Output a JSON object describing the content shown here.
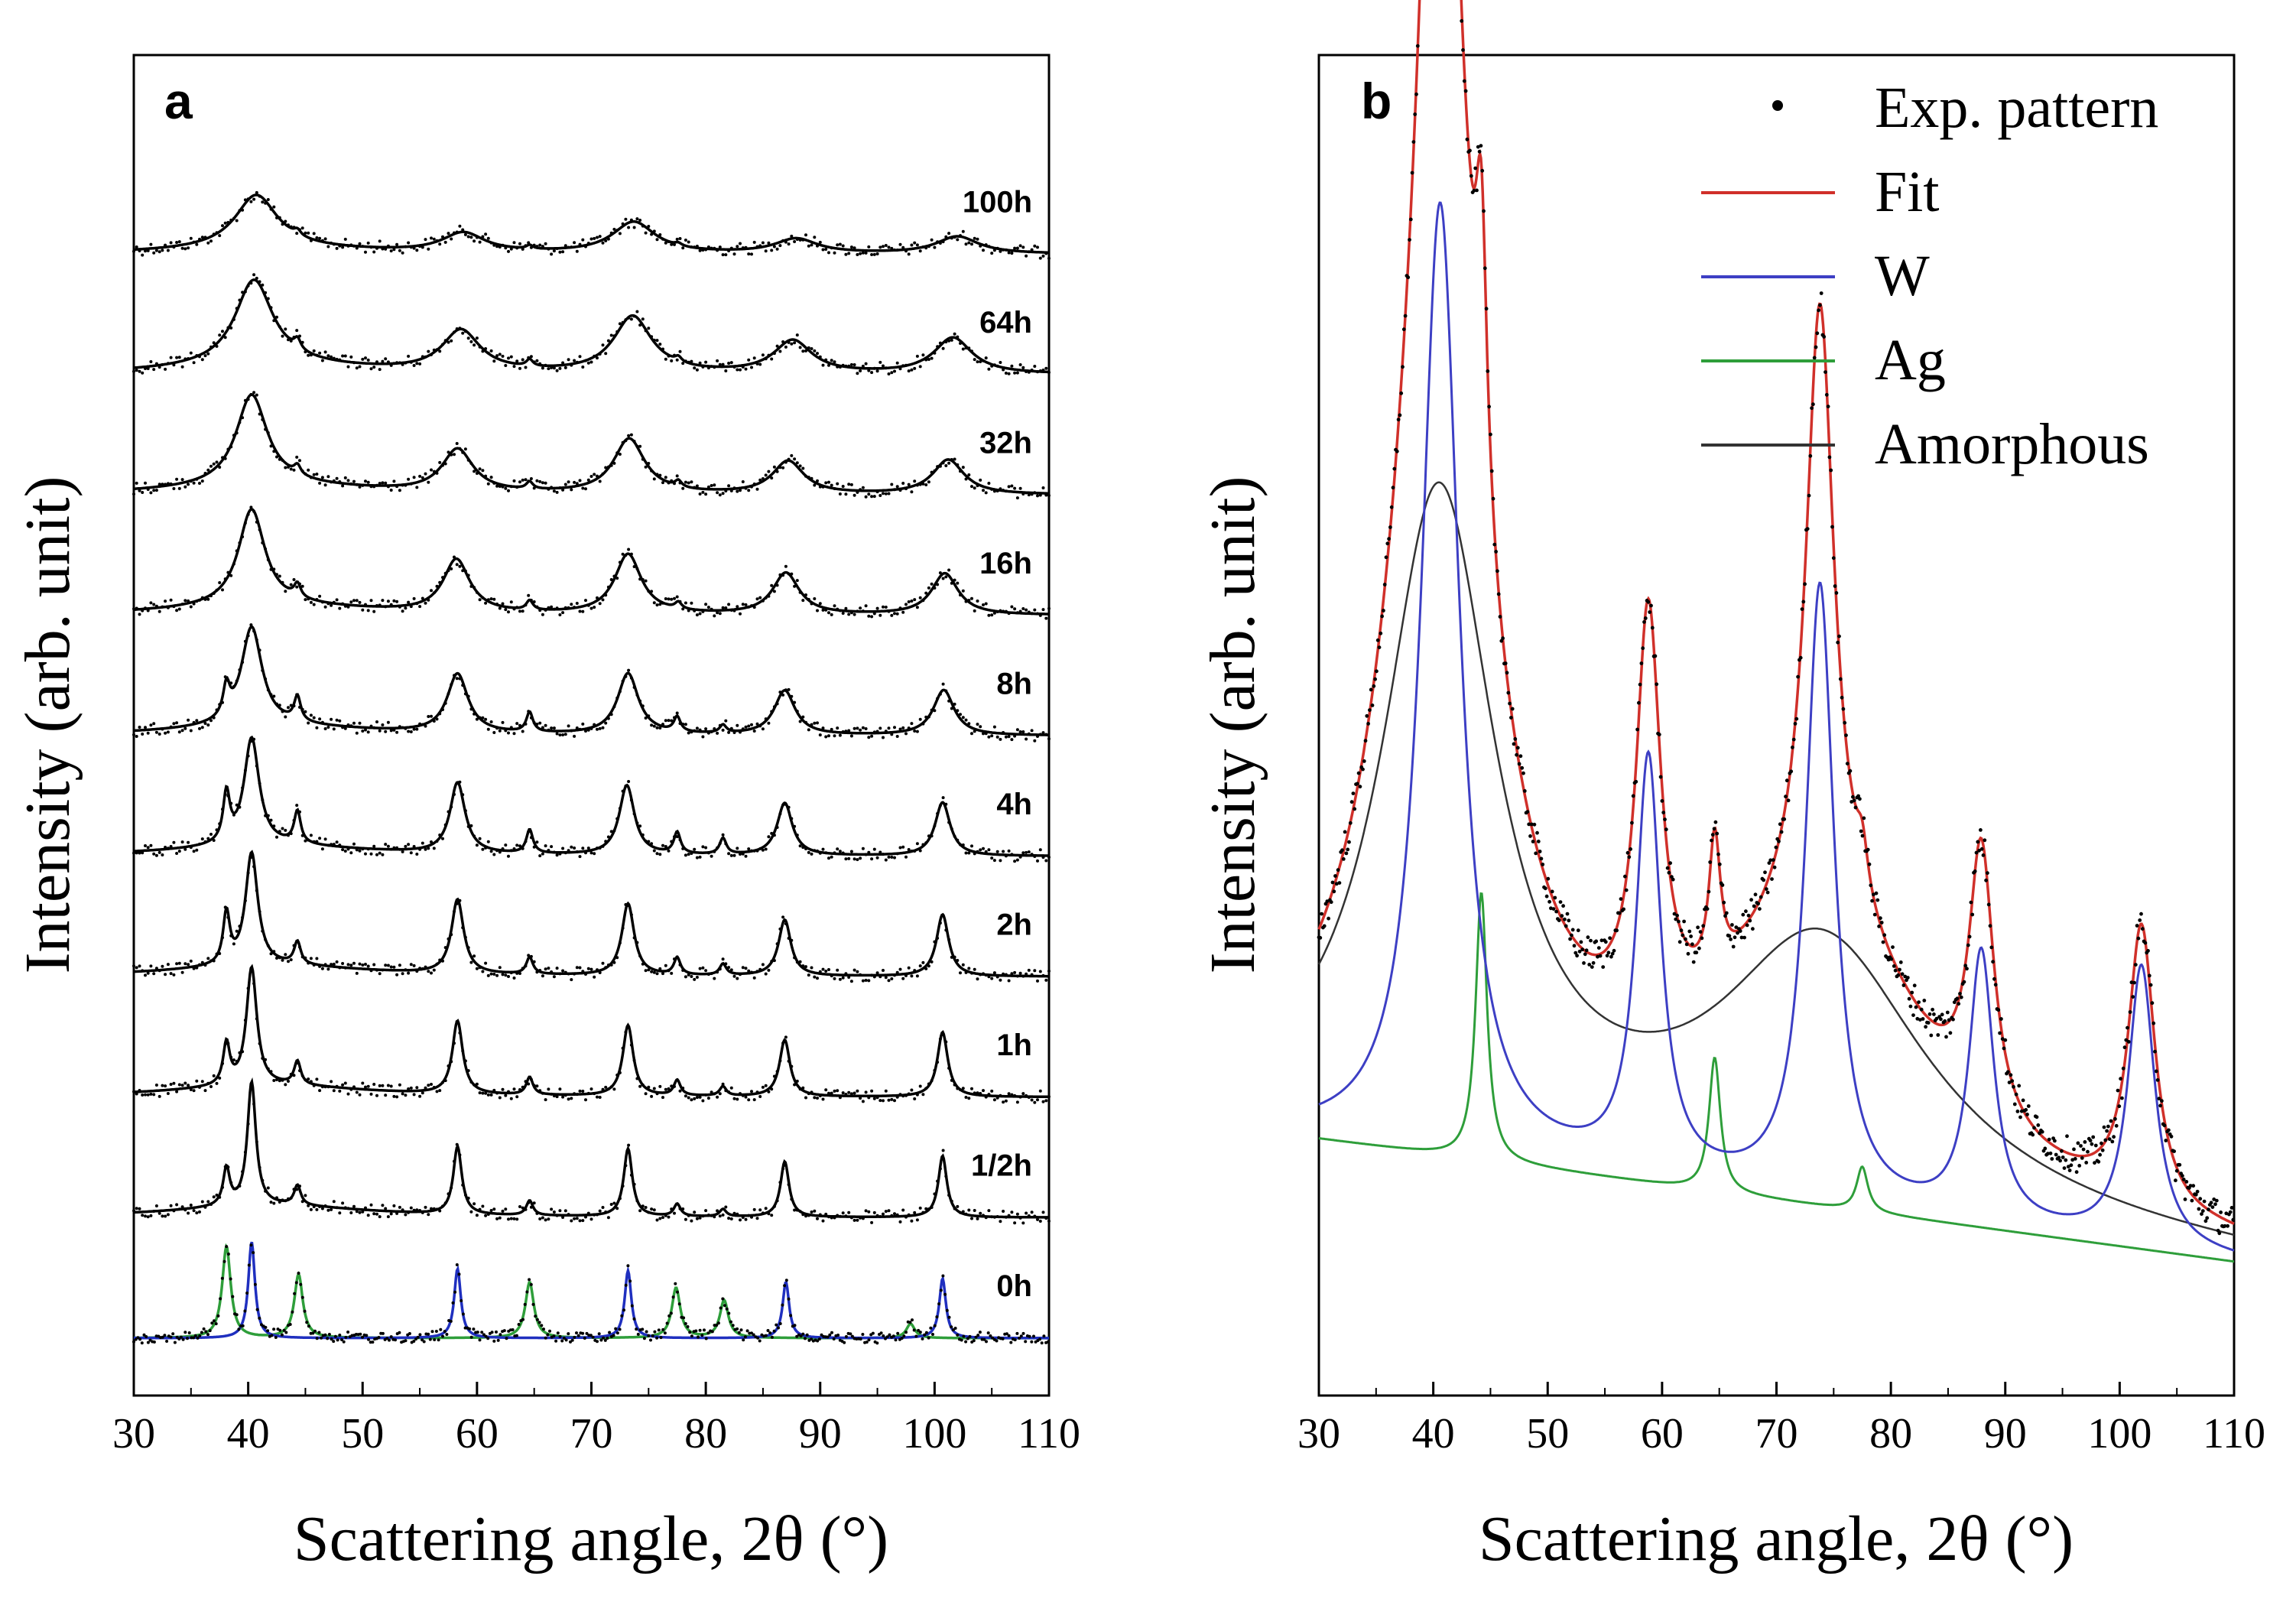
{
  "chart_data": [
    {
      "panel": "a",
      "type": "line",
      "xlabel": "Scattering angle, 2θ (°)",
      "ylabel": "Intensity (arb. unit)",
      "xlim": [
        30,
        110
      ],
      "xticks": [
        30,
        40,
        50,
        60,
        70,
        80,
        90,
        100,
        110
      ],
      "yticks": [],
      "colors": {
        "trace": "#000000",
        "W": "#1f2fbf",
        "Ag": "#2e9e3a"
      },
      "series": [
        {
          "name": "100h",
          "offset": 8,
          "height": 0.5,
          "width": 4.5,
          "crystal": 0.05,
          "peaks": [
            [
              40.7,
              1.0
            ],
            [
              58.8,
              0.36
            ],
            [
              73.7,
              0.58
            ],
            [
              87.9,
              0.27
            ],
            [
              102.0,
              0.32
            ]
          ],
          "sharp": [
            [
              44.3,
              0.1
            ],
            [
              64.6,
              0.07
            ],
            [
              77.6,
              0.05
            ]
          ]
        },
        {
          "name": "64h",
          "offset": 7,
          "height": 0.8,
          "width": 4.0,
          "crystal": 0.06,
          "peaks": [
            [
              40.5,
              1.0
            ],
            [
              58.6,
              0.48
            ],
            [
              73.6,
              0.66
            ],
            [
              87.6,
              0.38
            ],
            [
              101.6,
              0.42
            ]
          ],
          "sharp": [
            [
              44.3,
              0.12
            ],
            [
              64.6,
              0.08
            ],
            [
              77.6,
              0.06
            ]
          ]
        },
        {
          "name": "32h",
          "offset": 6,
          "height": 0.85,
          "width": 3.3,
          "crystal": 0.07,
          "peaks": [
            [
              40.3,
              1.0
            ],
            [
              58.3,
              0.47
            ],
            [
              73.3,
              0.6
            ],
            [
              87.2,
              0.36
            ],
            [
              101.2,
              0.38
            ]
          ],
          "sharp": [
            [
              44.3,
              0.1
            ],
            [
              64.6,
              0.08
            ],
            [
              77.6,
              0.07
            ]
          ]
        },
        {
          "name": "16h",
          "offset": 5,
          "height": 0.9,
          "width": 2.8,
          "crystal": 0.08,
          "peaks": [
            [
              40.3,
              1.0
            ],
            [
              58.2,
              0.55
            ],
            [
              73.2,
              0.62
            ],
            [
              87.0,
              0.43
            ],
            [
              100.9,
              0.43
            ]
          ],
          "sharp": [
            [
              44.3,
              0.14
            ],
            [
              64.6,
              0.1
            ],
            [
              77.6,
              0.07
            ]
          ]
        },
        {
          "name": "8h",
          "offset": 4,
          "height": 0.92,
          "width": 2.2,
          "crystal": 0.2,
          "peaks": [
            [
              40.3,
              1.0
            ],
            [
              58.3,
              0.6
            ],
            [
              73.2,
              0.62
            ],
            [
              86.9,
              0.45
            ],
            [
              100.8,
              0.46
            ]
          ],
          "sharp": [
            [
              38.1,
              0.3
            ],
            [
              44.3,
              0.25
            ],
            [
              64.6,
              0.2
            ],
            [
              77.5,
              0.15
            ],
            [
              81.5,
              0.08
            ]
          ]
        },
        {
          "name": "4h",
          "offset": 3,
          "height": 1.0,
          "width": 1.6,
          "crystal": 0.32,
          "peaks": [
            [
              40.3,
              1.0
            ],
            [
              58.3,
              0.66
            ],
            [
              73.1,
              0.65
            ],
            [
              86.9,
              0.49
            ],
            [
              100.7,
              0.5
            ]
          ],
          "sharp": [
            [
              38.1,
              0.45
            ],
            [
              44.3,
              0.3
            ],
            [
              64.6,
              0.22
            ],
            [
              77.5,
              0.2
            ],
            [
              81.5,
              0.15
            ]
          ]
        },
        {
          "name": "2h",
          "offset": 2,
          "height": 1.05,
          "width": 1.3,
          "crystal": 0.35,
          "peaks": [
            [
              40.3,
              1.0
            ],
            [
              58.3,
              0.66
            ],
            [
              73.2,
              0.64
            ],
            [
              86.9,
              0.5
            ],
            [
              100.7,
              0.55
            ]
          ],
          "sharp": [
            [
              38.1,
              0.45
            ],
            [
              44.3,
              0.2
            ],
            [
              64.6,
              0.15
            ],
            [
              77.5,
              0.15
            ],
            [
              81.5,
              0.1
            ]
          ]
        },
        {
          "name": "1h",
          "offset": 1,
          "height": 1.1,
          "width": 1.1,
          "crystal": 0.35,
          "peaks": [
            [
              40.3,
              1.0
            ],
            [
              58.3,
              0.62
            ],
            [
              73.2,
              0.6
            ],
            [
              86.9,
              0.48
            ],
            [
              100.7,
              0.55
            ]
          ],
          "sharp": [
            [
              38.1,
              0.35
            ],
            [
              44.3,
              0.2
            ],
            [
              64.6,
              0.15
            ],
            [
              77.5,
              0.13
            ],
            [
              81.5,
              0.08
            ]
          ]
        },
        {
          "name": "1/2h",
          "offset": 0,
          "height": 1.15,
          "width": 0.9,
          "crystal": 0.35,
          "peaks": [
            [
              40.3,
              1.0
            ],
            [
              58.3,
              0.55
            ],
            [
              73.2,
              0.55
            ],
            [
              86.9,
              0.45
            ],
            [
              100.7,
              0.5
            ]
          ],
          "sharp": [
            [
              38.1,
              0.3
            ],
            [
              44.3,
              0.16
            ],
            [
              64.6,
              0.12
            ],
            [
              77.5,
              0.1
            ],
            [
              81.5,
              0.06
            ]
          ]
        },
        {
          "name": "0h",
          "offset": -1,
          "height": 0.9,
          "width": 0.7,
          "crystal": 0.0,
          "peaks": [
            [
              40.3,
              1.0
            ],
            [
              58.3,
              0.72
            ],
            [
              73.2,
              0.7
            ],
            [
              87.0,
              0.58
            ],
            [
              100.7,
              0.62
            ]
          ],
          "sharp": [
            [
              38.1,
              0.95
            ],
            [
              44.4,
              0.66
            ],
            [
              64.6,
              0.58
            ],
            [
              77.4,
              0.52
            ],
            [
              81.6,
              0.39
            ],
            [
              97.9,
              0.15
            ]
          ]
        }
      ]
    },
    {
      "panel": "b",
      "type": "line",
      "xlabel": "Scattering angle, 2θ (°)",
      "ylabel": "Intensity (arb. unit)",
      "xlim": [
        30,
        110
      ],
      "xticks": [
        30,
        40,
        50,
        60,
        70,
        80,
        90,
        100,
        110
      ],
      "yticks": [],
      "legend_position": "top-right",
      "legend": [
        "Exp. pattern",
        "Fit",
        "W",
        "Ag",
        "Amorphous"
      ],
      "colors": {
        "exp": "#000000",
        "fit": "#d0302a",
        "W": "#3d3fc4",
        "Ag": "#2e9e3a",
        "amorphous": "#333333"
      },
      "baseline": {
        "x": [
          30,
          110
        ],
        "y": [
          0.23,
          0.12
        ]
      },
      "W_peaks": [
        [
          40.6,
          2.0,
          0.85
        ],
        [
          58.8,
          1.3,
          0.37
        ],
        [
          73.8,
          1.5,
          0.55
        ],
        [
          87.9,
          1.3,
          0.24
        ],
        [
          101.9,
          1.4,
          0.25
        ]
      ],
      "Ag_peaks": [
        [
          44.2,
          0.6,
          0.24
        ],
        [
          64.6,
          0.6,
          0.12
        ],
        [
          77.5,
          0.6,
          0.04
        ]
      ],
      "amorphous_peaks": [
        [
          40.5,
          6.0,
          0.58
        ],
        [
          74.0,
          11.0,
          0.23
        ]
      ]
    }
  ]
}
